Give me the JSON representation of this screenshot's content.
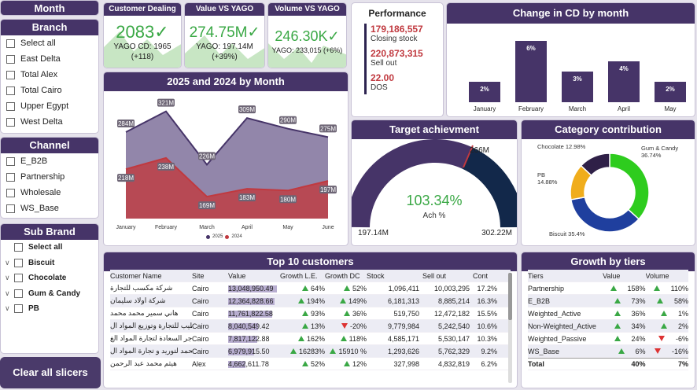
{
  "slicers": {
    "month": {
      "title": "Month"
    },
    "branch": {
      "title": "Branch",
      "items": [
        "Select all",
        "East Delta",
        "Total Alex",
        "Total Cairo",
        "Upper Egypt",
        "West Delta"
      ]
    },
    "channel": {
      "title": "Channel",
      "items": [
        "E_B2B",
        "Partnership",
        "Wholesale",
        "WS_Base"
      ]
    },
    "sub_brand": {
      "title": "Sub Brand",
      "items": [
        "Select all",
        "Biscuit",
        "Chocolate",
        "Gum & Candy",
        "PB"
      ]
    },
    "clear_label": "Clear all slicers"
  },
  "kpis": {
    "customer_dealing": {
      "title": "Customer Dealing",
      "value": "2083",
      "sub1": "YAGO CD: 1965",
      "sub2": "(+118)"
    },
    "value_vs_yago": {
      "title": "Value VS YAGO",
      "value": "274.75M",
      "sub1": "YAGO: 197.14M",
      "sub2": "(+39%)"
    },
    "volume_vs_yago": {
      "title": "Volume VS YAGO",
      "value": "246.30K",
      "sub1": "YAGO: 233,015 (+6%)"
    }
  },
  "performance": {
    "title": "Performance",
    "items": [
      {
        "value": "179,186,557",
        "label": "Closing stock"
      },
      {
        "value": "220,873,315",
        "label": "Sell out"
      },
      {
        "value": "22.00",
        "label": "DOS"
      }
    ]
  },
  "cd_change": {
    "title": "Change in CD by month"
  },
  "monthly": {
    "title": "2025 and 2024 by Month",
    "legend_2025": "2025",
    "legend_2024": "2024"
  },
  "target": {
    "title": "Target achievment",
    "pct": "103.34%",
    "label": "Ach %",
    "min": "197.14M",
    "max": "302.22M",
    "target": "266M"
  },
  "category": {
    "title": "Category contribution"
  },
  "top10": {
    "title": "Top 10 customers",
    "columns": [
      "Customer Name",
      "Site",
      "Value",
      "Growth L.E.",
      "Growth DC",
      "Stock",
      "Sell out",
      "Cont"
    ],
    "rows": [
      {
        "name": "شركة مكسب للتجارة",
        "site": "Cairo",
        "value": "13,048,950.49",
        "gle": "64%",
        "gle_dir": "up",
        "gdc": "52%",
        "gdc_dir": "up",
        "stock": "1,096,411",
        "sell": "10,003,295",
        "cont": "17.2%"
      },
      {
        "name": "شركة اولاد سليمان",
        "site": "Cairo",
        "value": "12,364,828.66",
        "gle": "194%",
        "gle_dir": "up",
        "gdc": "149%",
        "gdc_dir": "up",
        "stock": "6,181,313",
        "sell": "8,885,214",
        "cont": "16.3%"
      },
      {
        "name": "هاني سمير محمد محمد",
        "site": "Cairo",
        "value": "11,761,822.58",
        "gle": "93%",
        "gle_dir": "up",
        "gdc": "36%",
        "gdc_dir": "up",
        "stock": "519,750",
        "sell": "12,472,182",
        "cont": "15.5%"
      },
      {
        "name": "الطيب للتجارة وتوزيع المواد ال",
        "site": "Cairo",
        "value": "8,040,549.42",
        "gle": "13%",
        "gle_dir": "up",
        "gdc": "-20%",
        "gdc_dir": "down",
        "stock": "9,779,984",
        "sell": "5,242,540",
        "cont": "10.6%"
      },
      {
        "name": "تاجر السعادة لتجارة المواد الغ",
        "site": "Cairo",
        "value": "7,817,122.88",
        "gle": "162%",
        "gle_dir": "up",
        "gdc": "118%",
        "gdc_dir": "up",
        "stock": "4,585,171",
        "sell": "5,530,147",
        "cont": "10.3%"
      },
      {
        "name": "الحمد لتوريد و تجارة المواد ال",
        "site": "Cairo",
        "value": "6,979,915.50",
        "gle": "16283%",
        "gle_dir": "up",
        "gdc": "15910 %",
        "gdc_dir": "up",
        "stock": "1,293,626",
        "sell": "5,762,329",
        "cont": "9.2%"
      },
      {
        "name": "هيثم محمد عبد الرحمن",
        "site": "Alex",
        "value": "4,662,611.78",
        "gle": "52%",
        "gle_dir": "up",
        "gdc": "12%",
        "gdc_dir": "up",
        "stock": "327,998",
        "sell": "4,832,819",
        "cont": "6.2%"
      }
    ]
  },
  "tiers": {
    "title": "Growth by tiers",
    "columns": [
      "Tiers",
      "Value",
      "Volume"
    ],
    "rows": [
      {
        "tier": "Partnership",
        "value": "158%",
        "vdir": "up",
        "volume": "110%",
        "voldir": "up"
      },
      {
        "tier": "E_B2B",
        "value": "73%",
        "vdir": "up",
        "volume": "58%",
        "voldir": "up"
      },
      {
        "tier": "Weighted_Active",
        "value": "36%",
        "vdir": "up",
        "volume": "1%",
        "voldir": "up"
      },
      {
        "tier": "Non-Weighted_Active",
        "value": "34%",
        "vdir": "up",
        "volume": "2%",
        "voldir": "up"
      },
      {
        "tier": "Weighted_Passive",
        "value": "24%",
        "vdir": "up",
        "volume": "-6%",
        "voldir": "down"
      },
      {
        "tier": "WS_Base",
        "value": "6%",
        "vdir": "up",
        "volume": "-16%",
        "voldir": "down"
      }
    ],
    "total": {
      "label": "Total",
      "value": "40%",
      "volume": "7%"
    }
  },
  "chart_data": [
    {
      "type": "bar",
      "title": "Change in CD by month",
      "categories": [
        "January",
        "February",
        "March",
        "April",
        "May"
      ],
      "values": [
        2,
        6,
        3,
        4,
        2
      ],
      "labels": [
        "2%",
        "6%",
        "3%",
        "4%",
        "2%"
      ],
      "color": "#463468"
    },
    {
      "type": "area",
      "title": "2025 and 2024 by Month",
      "categories": [
        "January",
        "February",
        "March",
        "April",
        "May",
        "June"
      ],
      "series": [
        {
          "name": "2025",
          "values": [
            284,
            321,
            226,
            309,
            290,
            275
          ],
          "labels": [
            "284M",
            "321M",
            "226M",
            "309M",
            "290M",
            "275M"
          ],
          "color": "#6d5d8e"
        },
        {
          "name": "2024",
          "values": [
            218,
            238,
            169,
            183,
            180,
            197
          ],
          "labels": [
            "218M",
            "238M",
            "169M",
            "183M",
            "180M",
            "197M"
          ],
          "color": "#c0393f"
        }
      ],
      "ylim": [
        130,
        340
      ]
    },
    {
      "type": "pie",
      "title": "Category contribution",
      "categories": [
        "Gum & Candy",
        "Biscuit",
        "PB",
        "Chocolate"
      ],
      "values": [
        36.74,
        35.4,
        14.88,
        12.98
      ],
      "labels": [
        "Gum & Candy\n36.74%",
        "Biscuit 35.4%",
        "PB\n14.88%",
        "Chocolate 12.98%"
      ],
      "colors": [
        "#2ecc1e",
        "#1f3f9e",
        "#f0ad1c",
        "#2f2047"
      ]
    }
  ]
}
